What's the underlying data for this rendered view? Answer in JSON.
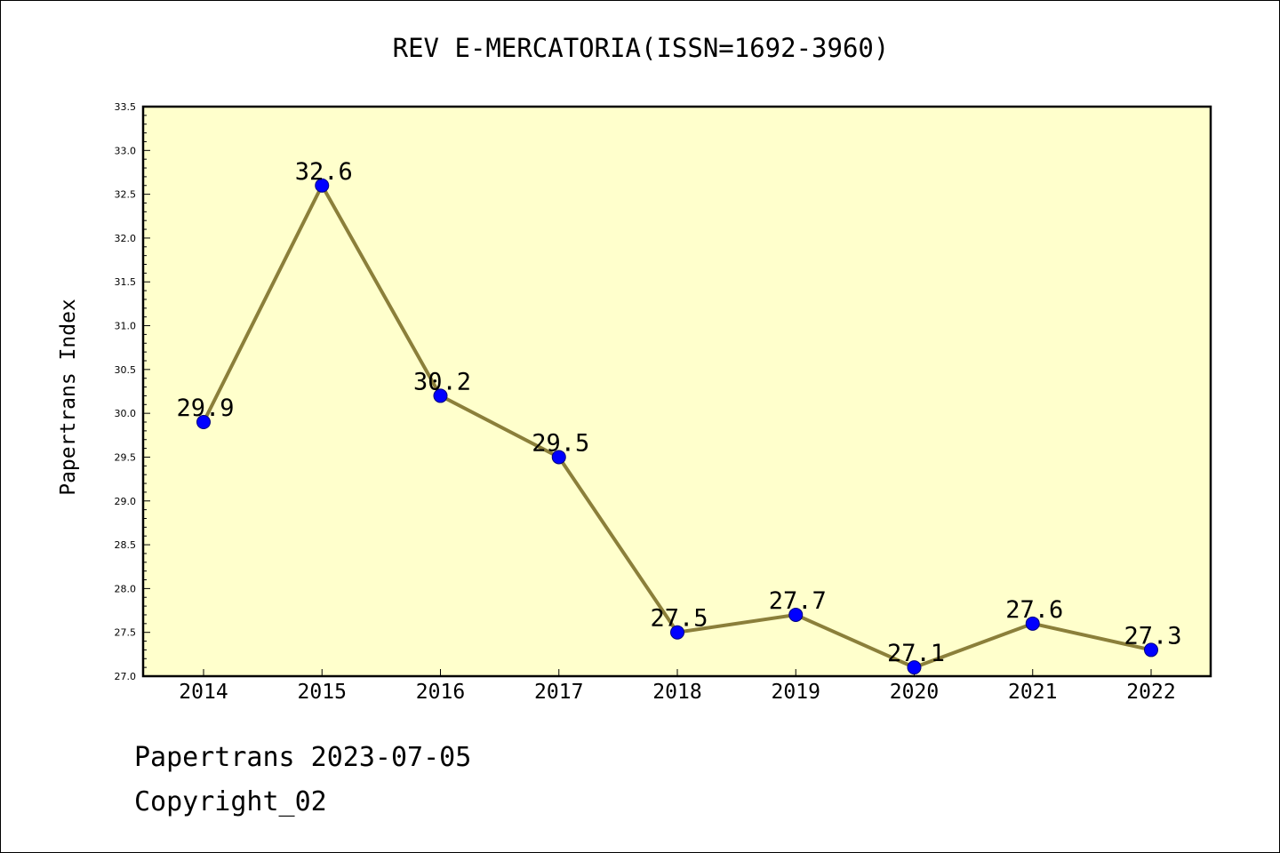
{
  "chart_data": {
    "type": "line",
    "title": "REV E-MERCATORIA(ISSN=1692-3960)",
    "xlabel": "",
    "ylabel": "Papertrans Index",
    "categories": [
      "2014",
      "2015",
      "2016",
      "2017",
      "2018",
      "2019",
      "2020",
      "2021",
      "2022"
    ],
    "series": [
      {
        "values": [
          29.9,
          32.6,
          30.2,
          29.5,
          27.5,
          27.7,
          27.1,
          27.6,
          27.3
        ],
        "data_labels": [
          "29.9",
          "32.6",
          "30.2",
          "29.5",
          "27.5",
          "27.7",
          "27.1",
          "27.6",
          "27.3"
        ]
      }
    ],
    "ylim": [
      27.0,
      33.5
    ],
    "yticks": [
      "27.0",
      "27.5",
      "28.0",
      "28.5",
      "29.0",
      "29.5",
      "30.0",
      "30.5",
      "31.0",
      "31.5",
      "32.0",
      "32.5",
      "33.0",
      "33.5"
    ],
    "grid": false,
    "legend": "none"
  },
  "footer": {
    "date_text": "Papertrans 2023-07-05",
    "copyright_text": "Copyright_02"
  },
  "colors": {
    "plot_background": "#ffffcc",
    "line": "#8b7f3a",
    "marker_fill": "#0000ff",
    "marker_edge": "#000080",
    "axis": "#000000"
  }
}
